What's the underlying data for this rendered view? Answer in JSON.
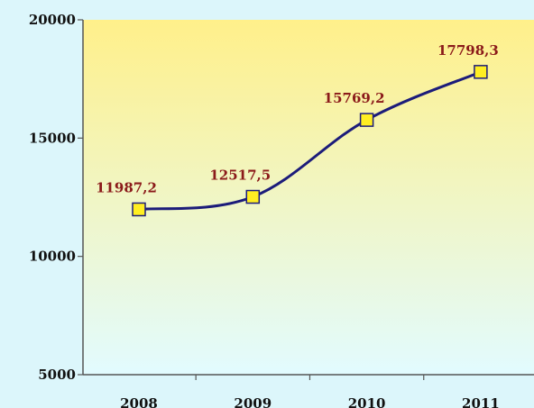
{
  "chart_data": {
    "type": "line",
    "title": "",
    "xlabel": "",
    "ylabel": "",
    "categories": [
      "2008",
      "2009",
      "2010",
      "2011"
    ],
    "series": [
      {
        "values": [
          11987.2,
          12517.5,
          15769.2,
          17798.3
        ],
        "value_labels": [
          "11987,2",
          "12517,5",
          "15769,2",
          "17798,3"
        ]
      }
    ],
    "ylim": [
      5000,
      20000
    ],
    "yticks": [
      5000,
      10000,
      15000,
      20000
    ],
    "ytick_labels": [
      "5000",
      "10000",
      "15000",
      "20000"
    ],
    "grid": false,
    "legend": "none",
    "colors": {
      "line": "#1c1c7a",
      "marker_fill": "#ffee22",
      "marker_stroke": "#1c1c7a",
      "data_label": "#8b1a1a",
      "plot_top": "#fff08a",
      "plot_bottom": "#e2fbff"
    }
  }
}
